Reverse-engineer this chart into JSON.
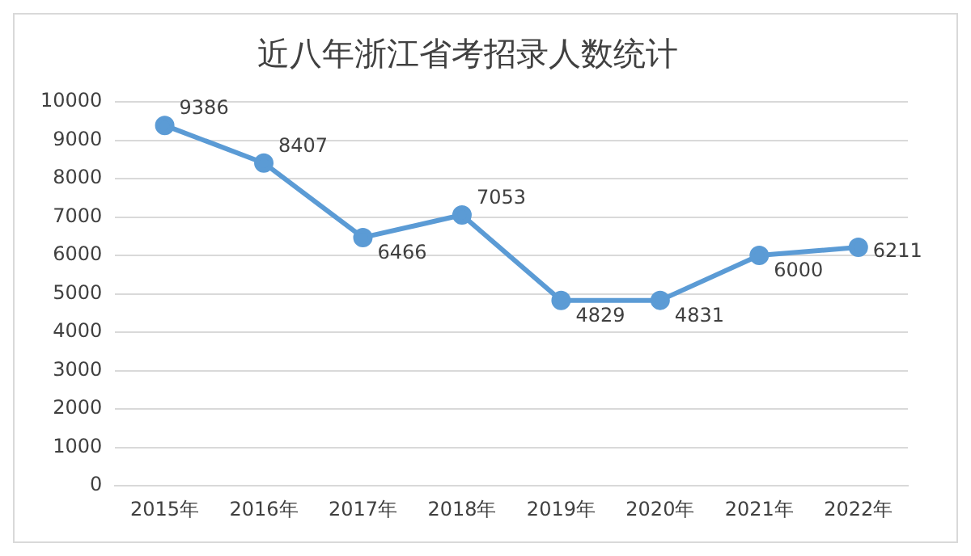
{
  "chart_data": {
    "type": "line",
    "title": "近八年浙江省考招录人数统计",
    "categories": [
      "2015年",
      "2016年",
      "2017年",
      "2018年",
      "2019年",
      "2020年",
      "2021年",
      "2022年"
    ],
    "series": [
      {
        "color": "#5b9bd5",
        "values": [
          9386,
          8407,
          6466,
          7053,
          4829,
          4831,
          6000,
          6211
        ]
      }
    ],
    "ylim": [
      0,
      10000
    ],
    "yticks": [
      0,
      1000,
      2000,
      3000,
      4000,
      5000,
      6000,
      7000,
      8000,
      9000,
      10000
    ],
    "grid": "y",
    "legend": false,
    "marker": "circle",
    "line_style": "solid",
    "data_labels": true
  }
}
